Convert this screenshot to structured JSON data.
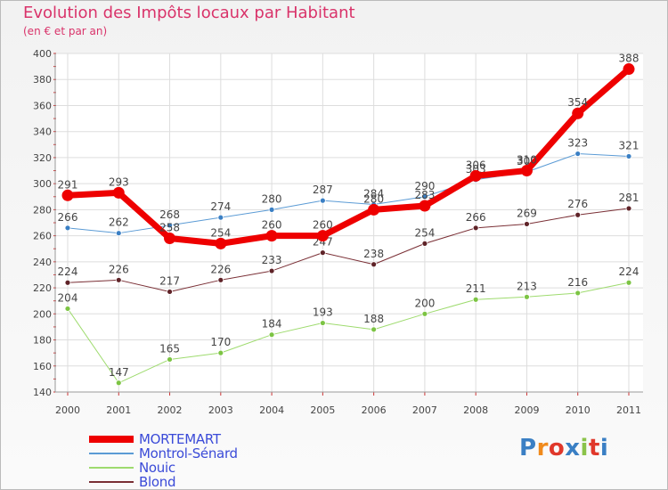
{
  "title": "Evolution des Impôts locaux par Habitant",
  "subtitle": "(en € et par an)",
  "brand": {
    "text": "Proxiti",
    "letters": [
      {
        "ch": "P",
        "color": "#3a7fc4"
      },
      {
        "ch": "r",
        "color": "#f08a1c"
      },
      {
        "ch": "o",
        "color": "#e0382b"
      },
      {
        "ch": "x",
        "color": "#3a7fc4"
      },
      {
        "ch": "i",
        "color": "#8bc34a"
      },
      {
        "ch": "t",
        "color": "#e0382b"
      },
      {
        "ch": "i",
        "color": "#3a7fc4"
      }
    ]
  },
  "chart_data": {
    "type": "line",
    "title": "Evolution des Impôts locaux par Habitant",
    "subtitle": "(en € et par an)",
    "x": [
      "2000",
      "2001",
      "2002",
      "2003",
      "2004",
      "2005",
      "2006",
      "2007",
      "2008",
      "2009",
      "2010",
      "2011"
    ],
    "ylim": [
      140,
      400
    ],
    "yticks": [
      140,
      160,
      180,
      200,
      220,
      240,
      260,
      280,
      300,
      320,
      340,
      360,
      380,
      400
    ],
    "grid": true,
    "legend": "bottom-left",
    "series": [
      {
        "name": "Montrol-Sénard",
        "color": "#5b9bd5",
        "dot": "#3a7fc4",
        "width": 1,
        "values": [
          266,
          262,
          268,
          274,
          280,
          287,
          284,
          290,
          303,
          309,
          323,
          321
        ]
      },
      {
        "name": "Nouic",
        "color": "#9edb6e",
        "dot": "#7cc443",
        "width": 1,
        "values": [
          204,
          147,
          165,
          170,
          184,
          193,
          188,
          200,
          211,
          213,
          216,
          224
        ]
      },
      {
        "name": "Blond",
        "color": "#7a2f35",
        "dot": "#5f2328",
        "width": 1,
        "values": [
          224,
          226,
          217,
          226,
          233,
          247,
          238,
          254,
          266,
          269,
          276,
          281
        ]
      },
      {
        "name": "MORTEMART",
        "color": "#ee0000",
        "dot": "#ee0000",
        "width": 7,
        "values": [
          291,
          293,
          258,
          254,
          260,
          260,
          280,
          283,
          306,
          310,
          354,
          388
        ]
      }
    ]
  }
}
